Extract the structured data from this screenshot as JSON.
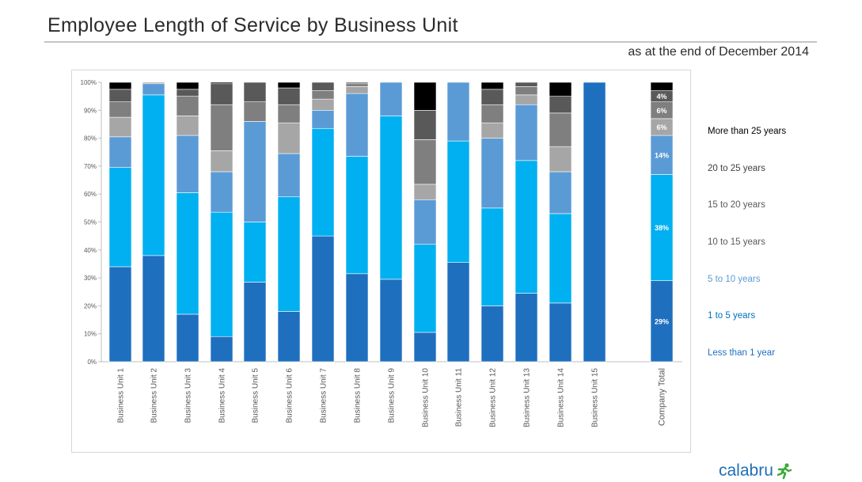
{
  "header": {
    "title": "Employee Length of Service by Business Unit",
    "subtitle": "as at the end of December 2014"
  },
  "logo": {
    "text": "calabru",
    "icon": "running-figure-icon",
    "color": "#1f6fb5"
  },
  "chart_data": {
    "type": "bar",
    "stacked": true,
    "percent": true,
    "ylim": [
      0,
      100
    ],
    "yticks": [
      "0%",
      "10%",
      "20%",
      "30%",
      "40%",
      "50%",
      "60%",
      "70%",
      "80%",
      "90%",
      "100%"
    ],
    "grid": false,
    "legend_position": "right",
    "categories": [
      "Business Unit 1",
      "Business Unit 2",
      "Business Unit 3",
      "Business Unit 4",
      "Business Unit 5",
      "Business Unit 6",
      "Business Unit 7",
      "Business Unit 8",
      "Business Unit 9",
      "Business Unit 10",
      "Business Unit 11",
      "Business Unit 12",
      "Business Unit 13",
      "Business Unit 14",
      "Business Unit 15",
      "Company Total"
    ],
    "series": [
      {
        "name": "Less than 1 year",
        "color": "#1f6fbf",
        "values": [
          34,
          38,
          17,
          9,
          28.5,
          18,
          45,
          31.5,
          29.5,
          10.5,
          35.5,
          20,
          24.5,
          21,
          100,
          29
        ],
        "labels": [
          "",
          "",
          "",
          "",
          "",
          "",
          "",
          "",
          "",
          "",
          "",
          "",
          "",
          "",
          "",
          "29%"
        ]
      },
      {
        "name": "1 to 5 years",
        "color": "#00b0f0",
        "values": [
          35.5,
          57.5,
          43.5,
          44.5,
          21.5,
          41,
          38.5,
          42,
          58.5,
          31.5,
          43.5,
          35,
          47.5,
          32,
          0,
          38
        ],
        "labels": [
          "",
          "",
          "",
          "",
          "",
          "",
          "",
          "",
          "",
          "",
          "",
          "",
          "",
          "",
          "",
          "38%"
        ]
      },
      {
        "name": "5 to 10 years",
        "color": "#5b9bd5",
        "values": [
          11,
          4,
          20.5,
          14.5,
          36,
          15.5,
          6.5,
          22.5,
          12,
          16,
          21,
          25,
          20,
          15,
          0,
          14
        ],
        "labels": [
          "",
          "",
          "",
          "",
          "",
          "",
          "",
          "",
          "",
          "",
          "",
          "",
          "",
          "",
          "",
          "14%"
        ]
      },
      {
        "name": "10 to 15 years",
        "color": "#a6a6a6",
        "values": [
          7,
          0.5,
          7,
          7.5,
          0,
          11,
          4,
          2.5,
          0,
          5.5,
          0,
          5.5,
          3.5,
          9,
          0,
          6
        ],
        "labels": [
          "",
          "",
          "",
          "",
          "",
          "",
          "",
          "",
          "",
          "",
          "",
          "",
          "",
          "",
          "",
          "6%"
        ]
      },
      {
        "name": "15 to 20 years",
        "color": "#7f7f7f",
        "values": [
          5.5,
          0,
          7,
          16.5,
          7,
          6.5,
          3,
          1,
          0,
          16,
          0,
          6.5,
          3,
          12,
          0,
          6
        ],
        "labels": [
          "",
          "",
          "",
          "",
          "",
          "",
          "",
          "",
          "",
          "",
          "",
          "",
          "",
          "",
          "",
          "6%"
        ]
      },
      {
        "name": "20 to 25 years",
        "color": "#595959",
        "values": [
          4.5,
          0,
          2.5,
          7.5,
          7,
          6,
          3,
          0.5,
          0,
          10.5,
          0,
          5.5,
          1.5,
          6,
          0,
          4
        ],
        "labels": [
          "",
          "",
          "",
          "",
          "",
          "",
          "",
          "",
          "",
          "",
          "",
          "",
          "",
          "",
          "",
          "4%"
        ]
      },
      {
        "name": "More than 25 years",
        "color": "#000000",
        "values": [
          2.5,
          0,
          2.5,
          0.5,
          0,
          2,
          0,
          0,
          0,
          10,
          0,
          2.5,
          0,
          5,
          0,
          3
        ],
        "labels": [
          "",
          "",
          "",
          "",
          "",
          "",
          "",
          "",
          "",
          "",
          "",
          "",
          "",
          "",
          "",
          ""
        ]
      }
    ]
  },
  "legend": [
    {
      "label": "More than 25 years",
      "color": "#000000"
    },
    {
      "label": "20 to 25 years",
      "color": "#404040"
    },
    {
      "label": "15 to 20 years",
      "color": "#595959"
    },
    {
      "label": "10 to 15 years",
      "color": "#595959"
    },
    {
      "label": "5 to 10 years",
      "color": "#5b9bd5"
    },
    {
      "label": "1 to 5 years",
      "color": "#0070c0"
    },
    {
      "label": "Less than 1 year",
      "color": "#1f6fbf"
    }
  ]
}
